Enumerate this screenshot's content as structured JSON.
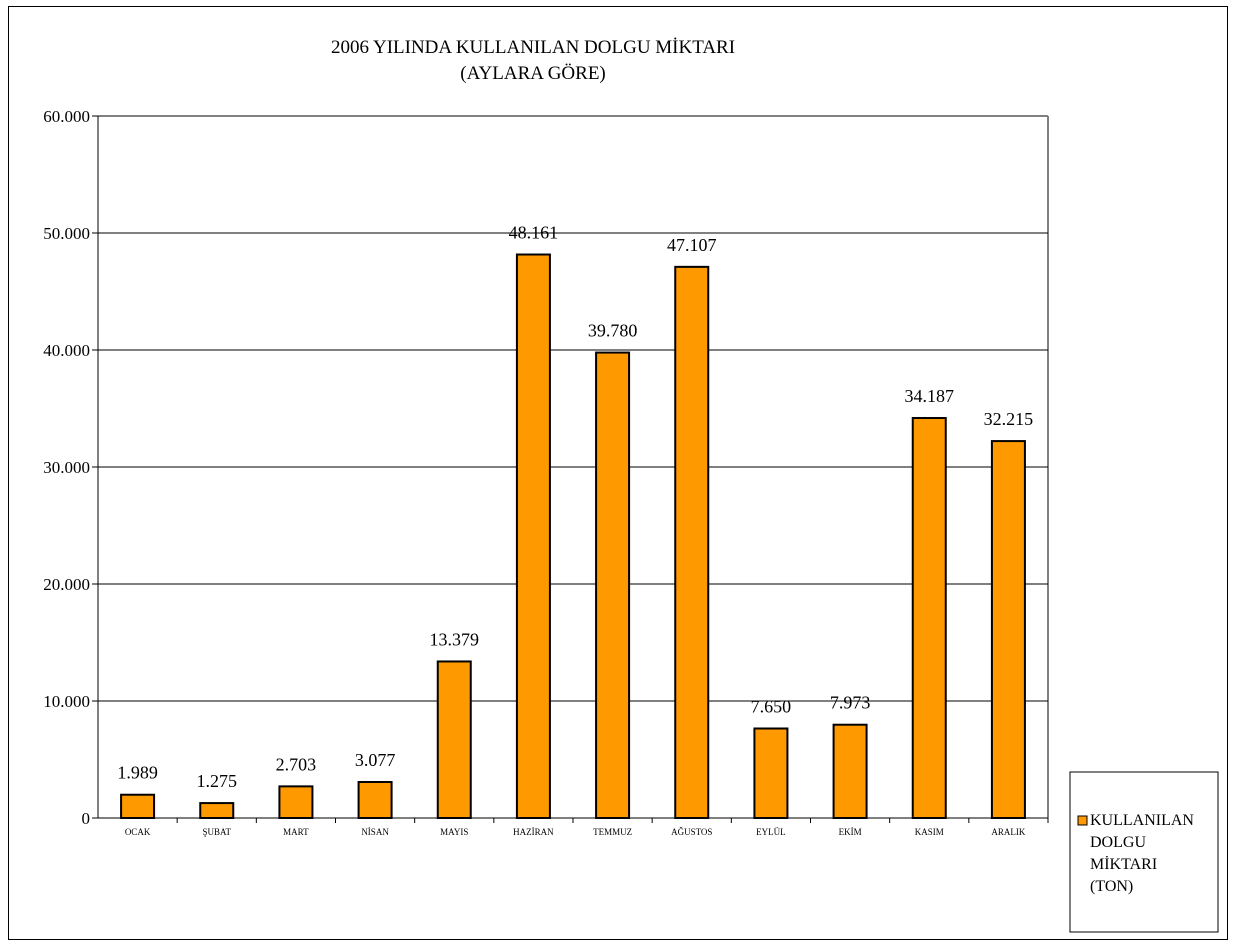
{
  "chart_data": {
    "type": "bar",
    "title": [
      "2006 YILINDA KULLANILAN DOLGU MİKTARI",
      "(AYLARA GÖRE)"
    ],
    "xlabel": "",
    "ylabel": "",
    "ylim": [
      0,
      60000
    ],
    "ytick_step": 10000,
    "yticks": [
      "0",
      "10.000",
      "20.000",
      "30.000",
      "40.000",
      "50.000",
      "60.000"
    ],
    "grid": true,
    "categories": [
      "OCAK",
      "ŞUBAT",
      "MART",
      "NİSAN",
      "MAYIS",
      "HAZİRAN",
      "TEMMUZ",
      "AĞUSTOS",
      "EYLÜL",
      "EKİM",
      "KASIM",
      "ARALIK"
    ],
    "series": [
      {
        "name": "KULLANILAN DOLGU MİKTARI (TON)",
        "color": "#FF9900",
        "values": [
          1989,
          1275,
          2703,
          3077,
          13379,
          48161,
          39780,
          47107,
          7650,
          7973,
          34187,
          32215
        ],
        "labels": [
          "1.989",
          "1.275",
          "2.703",
          "3.077",
          "13.379",
          "48.161",
          "39.780",
          "47.107",
          "7.650",
          "7.973",
          "34.187",
          "32.215"
        ]
      }
    ],
    "legend": {
      "position": "right-bottom",
      "lines": [
        "KULLANILAN",
        "DOLGU",
        "MİKTARI",
        "(TON)"
      ]
    }
  }
}
